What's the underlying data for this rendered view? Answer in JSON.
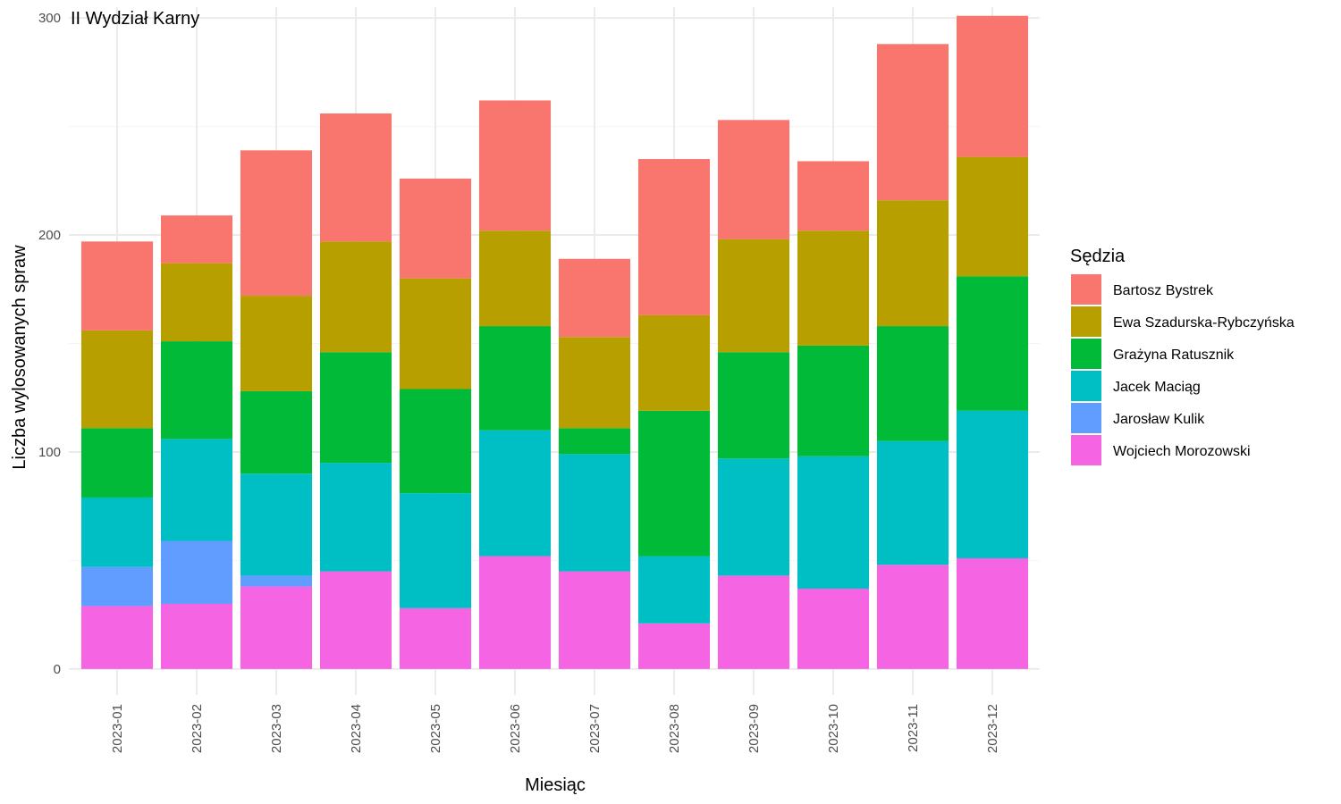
{
  "chart_data": {
    "type": "bar",
    "stacked": true,
    "title": "II Wydział Karny",
    "xlabel": "Miesiąc",
    "ylabel": "Liczba wylosowanych spraw",
    "ylim": [
      -12,
      305
    ],
    "yticks": [
      0,
      100,
      200,
      300
    ],
    "grid": true,
    "legend_position": "right",
    "legend_title": "Sędzia",
    "categories": [
      "2023-01",
      "2023-02",
      "2023-03",
      "2023-04",
      "2023-05",
      "2023-06",
      "2023-07",
      "2023-08",
      "2023-09",
      "2023-10",
      "2023-11",
      "2023-12"
    ],
    "series": [
      {
        "name": "Wojciech Morozowski",
        "color": "#F564E3",
        "values": [
          29,
          30,
          38,
          45,
          28,
          52,
          45,
          21,
          43,
          37,
          48,
          51
        ]
      },
      {
        "name": "Jarosław Kulik",
        "color": "#619CFF",
        "values": [
          18,
          29,
          5,
          0,
          0,
          0,
          0,
          0,
          0,
          0,
          0,
          0
        ]
      },
      {
        "name": "Jacek Maciąg",
        "color": "#00BFC4",
        "values": [
          32,
          47,
          47,
          50,
          53,
          58,
          54,
          31,
          54,
          61,
          57,
          68
        ]
      },
      {
        "name": "Grażyna Ratusznik",
        "color": "#00BA38",
        "values": [
          32,
          45,
          38,
          51,
          48,
          48,
          12,
          67,
          49,
          51,
          53,
          62
        ]
      },
      {
        "name": "Ewa Szadurska-Rybczyńska",
        "color": "#B79F00",
        "values": [
          45,
          36,
          44,
          51,
          51,
          44,
          42,
          44,
          52,
          53,
          58,
          55
        ]
      },
      {
        "name": "Bartosz Bystrek",
        "color": "#F8766D",
        "values": [
          41,
          22,
          67,
          59,
          46,
          60,
          36,
          72,
          55,
          32,
          72,
          65
        ]
      }
    ],
    "legend_order": [
      "Bartosz Bystrek",
      "Ewa Szadurska-Rybczyńska",
      "Grażyna Ratusznik",
      "Jacek Maciąg",
      "Jarosław Kulik",
      "Wojciech Morozowski"
    ]
  }
}
